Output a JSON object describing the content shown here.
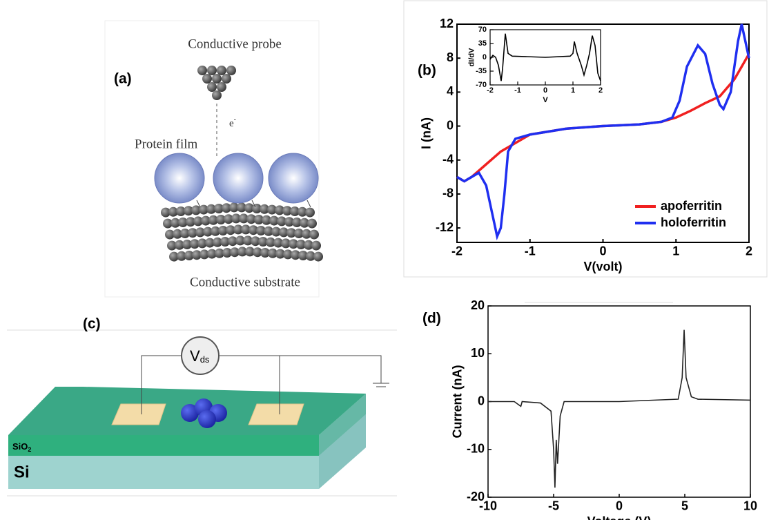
{
  "panel_labels": [
    "(a)",
    "(b)",
    "(c)",
    "(d)"
  ],
  "diagram_a": {
    "probe": "Conductive probe",
    "electron": "e",
    "electron_sup": "-",
    "film": "Protein film",
    "substrate": "Conductive substrate"
  },
  "diagram_c": {
    "voltage": "V",
    "voltage_sub": "ds",
    "oxide": "SiO",
    "oxide_sub": "2",
    "silicon": "Si"
  },
  "chart_data": [
    {
      "type": "line",
      "xlabel": "V(volt)",
      "ylabel": "I (nA)",
      "xlim": [
        -2,
        2
      ],
      "ylim": [
        -13.7,
        12
      ],
      "xticks": [
        -2,
        -1,
        0,
        1,
        2
      ],
      "yticks": [
        -12,
        -8,
        -4,
        0,
        4,
        8,
        12
      ],
      "legend": "lower right",
      "series": [
        {
          "name": "apoferritin",
          "color": "#f02020",
          "x": [
            -2,
            -1.9,
            -1.8,
            -1.6,
            -1.4,
            -1.2,
            -1,
            -0.5,
            0,
            0.5,
            0.8,
            1,
            1.2,
            1.4,
            1.6,
            1.8,
            1.9,
            2
          ],
          "values": [
            -6,
            -6.5,
            -6,
            -4.5,
            -3,
            -2,
            -1,
            -0.3,
            0,
            0.2,
            0.5,
            1,
            1.8,
            2.7,
            3.5,
            5.5,
            7,
            8.5
          ]
        },
        {
          "name": "holoferritin",
          "color": "#1f2ff0",
          "x": [
            -2,
            -1.9,
            -1.8,
            -1.7,
            -1.6,
            -1.5,
            -1.45,
            -1.4,
            -1.35,
            -1.3,
            -1.2,
            -1,
            -0.5,
            0,
            0.5,
            0.8,
            0.95,
            1.05,
            1.15,
            1.3,
            1.4,
            1.5,
            1.6,
            1.65,
            1.75,
            1.85,
            1.9,
            1.95,
            2
          ],
          "values": [
            -6,
            -6.5,
            -6,
            -5.5,
            -7,
            -11,
            -13,
            -12,
            -8,
            -3,
            -1.5,
            -1,
            -0.3,
            0,
            0.2,
            0.5,
            1,
            3,
            7,
            9.5,
            8.5,
            5,
            2.5,
            2,
            4,
            10,
            12,
            10,
            8
          ]
        }
      ]
    },
    {
      "type": "line",
      "xlabel": "V",
      "ylabel": "dI/dV",
      "xlim": [
        -2,
        2
      ],
      "ylim": [
        -70,
        70
      ],
      "xticks": [
        -2,
        -1,
        0,
        1,
        2
      ],
      "yticks": [
        -70,
        -35,
        0,
        35,
        70
      ],
      "color": "#000000",
      "x": [
        -2,
        -1.9,
        -1.8,
        -1.7,
        -1.6,
        -1.55,
        -1.45,
        -1.35,
        -1.2,
        0,
        0.9,
        1,
        1.05,
        1.15,
        1.3,
        1.4,
        1.5,
        1.6,
        1.7,
        1.8,
        1.9,
        2
      ],
      "values": [
        -5,
        5,
        0,
        -20,
        -60,
        -30,
        60,
        10,
        3,
        0,
        3,
        10,
        40,
        10,
        -20,
        -45,
        -20,
        10,
        55,
        30,
        -40,
        -60
      ]
    },
    {
      "type": "line",
      "xlabel": "Voltage (V)",
      "ylabel": "Current (nA)",
      "xlim": [
        -10,
        10
      ],
      "ylim": [
        -20,
        20
      ],
      "xticks": [
        -10,
        -5,
        0,
        5,
        10
      ],
      "yticks": [
        -20,
        -10,
        0,
        10,
        20
      ],
      "color": "#222222",
      "x": [
        -10,
        -8,
        -7.5,
        -7.4,
        -6,
        -5.2,
        -5,
        -4.9,
        -4.8,
        -4.7,
        -4.5,
        -4.2,
        0,
        4.5,
        4.8,
        4.95,
        5.1,
        5.5,
        6,
        10
      ],
      "values": [
        0,
        0,
        -1,
        0,
        -0.3,
        -2,
        -10,
        -18,
        -8,
        -13,
        -3,
        0,
        0,
        0.5,
        5,
        15,
        5,
        1,
        0.5,
        0.3
      ]
    }
  ]
}
